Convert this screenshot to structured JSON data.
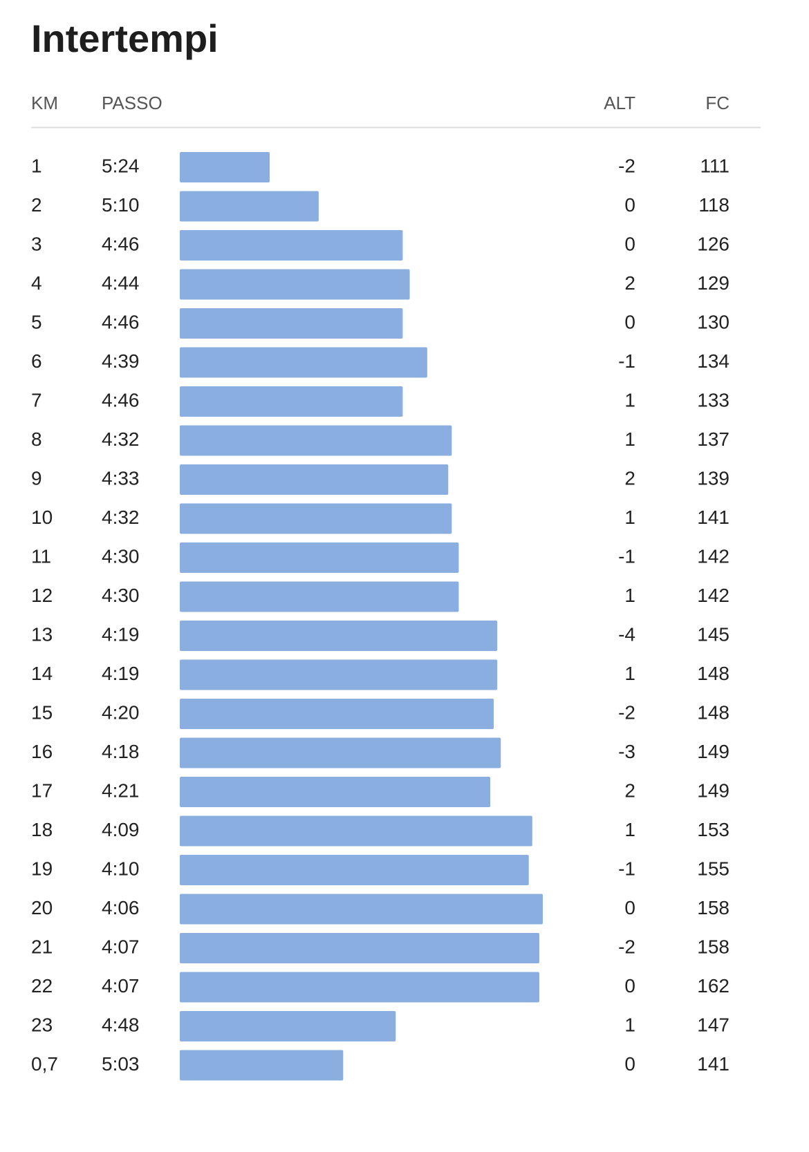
{
  "header": {
    "title": "Intertempi"
  },
  "table": {
    "columns": [
      "KM",
      "PASSO",
      "ALT",
      "FC"
    ],
    "km": [
      "1",
      "2",
      "3",
      "4",
      "5",
      "6",
      "7",
      "8",
      "9",
      "10",
      "11",
      "12",
      "13",
      "14",
      "15",
      "16",
      "17",
      "18",
      "19",
      "20",
      "21",
      "22",
      "23",
      "0,7"
    ],
    "pace": {
      "values": [
        324,
        310,
        286,
        284,
        286,
        279,
        286,
        272,
        273,
        272,
        270,
        270,
        259,
        259,
        260,
        258,
        261,
        249,
        250,
        246,
        247,
        247,
        288,
        303
      ],
      "value_labels": [
        "5:24",
        "5:10",
        "4:46",
        "4:44",
        "4:46",
        "4:39",
        "4:46",
        "4:32",
        "4:33",
        "4:32",
        "4:30",
        "4:30",
        "4:19",
        "4:19",
        "4:20",
        "4:18",
        "4:21",
        "4:09",
        "4:10",
        "4:06",
        "4:07",
        "4:07",
        "4:48",
        "5:03"
      ],
      "color": "#8aaee0"
    },
    "alt": [
      -2,
      0,
      0,
      2,
      0,
      -1,
      1,
      1,
      2,
      1,
      -1,
      1,
      -4,
      1,
      -2,
      -3,
      2,
      1,
      -1,
      0,
      -2,
      0,
      1,
      0
    ],
    "fc": [
      111,
      118,
      126,
      129,
      130,
      134,
      133,
      137,
      139,
      141,
      142,
      142,
      145,
      148,
      148,
      149,
      149,
      153,
      155,
      158,
      158,
      162,
      147,
      141
    ]
  }
}
